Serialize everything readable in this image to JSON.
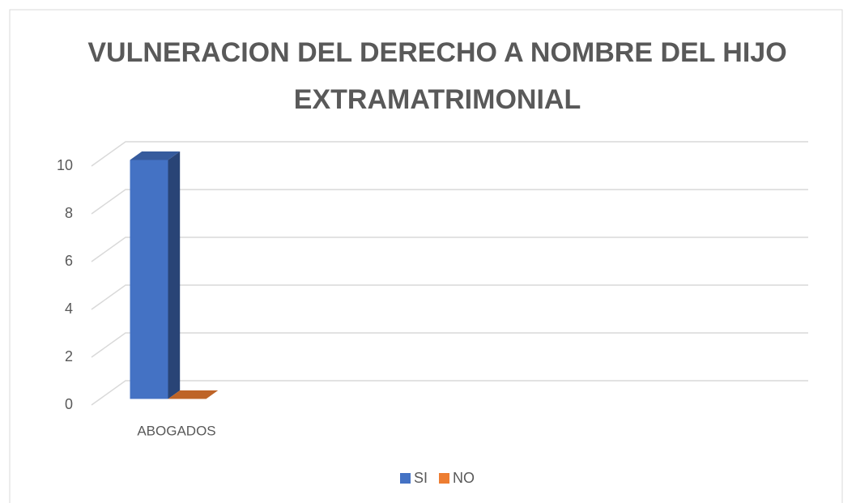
{
  "chart_data": {
    "type": "bar3d",
    "title": "VULNERACION DEL DERECHO A NOMBRE DEL HIJO EXTRAMATRIMONIAL",
    "categories": [
      "ABOGADOS"
    ],
    "series": [
      {
        "name": "SI",
        "color": "#4472c4",
        "values": [
          10
        ]
      },
      {
        "name": "NO",
        "color": "#ed7d31",
        "values": [
          0
        ]
      }
    ],
    "ylim": [
      0,
      10
    ],
    "yticks": [
      0,
      2,
      4,
      6,
      8,
      10
    ],
    "grid": true,
    "legend": "bottom"
  }
}
